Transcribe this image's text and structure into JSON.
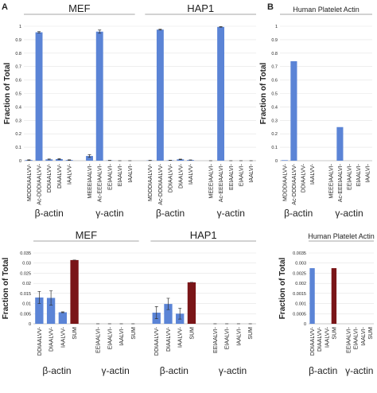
{
  "chart_data": [
    {
      "type": "bar",
      "panel": "A",
      "ylabel": "Fraction of Total",
      "ylim": [
        0,
        1
      ],
      "yticks": [
        0,
        0.1,
        0.2,
        0.3,
        0.4,
        0.5,
        0.6,
        0.7,
        0.8,
        0.9,
        1
      ],
      "groups": [
        {
          "title": "MEF",
          "subgroups": [
            {
              "label": "β-actin",
              "categories": [
                "MDDDIAALVV-",
                "Ac-DDDIAALVV-",
                "DDIAALVV-",
                "DIAALVV-",
                "IAALVV-"
              ],
              "values": [
                0.005,
                0.955,
                0.01,
                0.012,
                0.005
              ],
              "errors": [
                0.002,
                0.005,
                0.003,
                0.003,
                0.002
              ],
              "colors": [
                "#5b84d6",
                "#5b84d6",
                "#5b84d6",
                "#5b84d6",
                "#5b84d6"
              ]
            },
            {
              "label": "γ-actin",
              "categories": [
                "MEEEIAALVI-",
                "Ac-EEEIAALVI-",
                "EEIAALVI-",
                "EIAALVI-",
                "IAALVI-"
              ],
              "values": [
                0.035,
                0.96,
                0.002,
                0,
                0
              ],
              "errors": [
                0.01,
                0.012,
                0.001,
                0,
                0
              ],
              "colors": [
                "#5b84d6",
                "#5b84d6",
                "#5b84d6",
                "#5b84d6",
                "#5b84d6"
              ]
            }
          ]
        },
        {
          "title": "HAP1",
          "subgroups": [
            {
              "label": "β-actin",
              "categories": [
                "MDDDIAALVV-",
                "Ac-DDDIAALVV-",
                "DDIAALVV-",
                "DIAALVV-",
                "IAALVV-"
              ],
              "values": [
                0.002,
                0.975,
                0.003,
                0.01,
                0.005
              ],
              "errors": [
                0.001,
                0.003,
                0.001,
                0.002,
                0.001
              ],
              "colors": [
                "#5b84d6",
                "#5b84d6",
                "#5b84d6",
                "#5b84d6",
                "#5b84d6"
              ]
            },
            {
              "label": "γ-actin",
              "categories": [
                "MEEEIAALVI-",
                "Ac-EEEIAALVI-",
                "EEIAALVI-",
                "EIAALVI-",
                "IAALVI-"
              ],
              "values": [
                0,
                0.995,
                0,
                0,
                0
              ],
              "errors": [
                0,
                0.002,
                0,
                0,
                0
              ],
              "colors": [
                "#5b84d6",
                "#5b84d6",
                "#5b84d6",
                "#5b84d6",
                "#5b84d6"
              ]
            }
          ]
        }
      ]
    },
    {
      "type": "bar",
      "panel": "B",
      "ylabel": "Fraction of Total",
      "ylim": [
        0,
        1
      ],
      "yticks": [
        0,
        0.1,
        0.2,
        0.3,
        0.4,
        0.5,
        0.6,
        0.7,
        0.8,
        0.9,
        1
      ],
      "groups": [
        {
          "title": "Human Platelet Actin",
          "subgroups": [
            {
              "label": "β-actin",
              "categories": [
                "MDDDIAALVV-",
                "Ac-DDDIAALVV-",
                "DDIAALVV-",
                "IAALVV-"
              ],
              "values": [
                0.004,
                0.74,
                0,
                0
              ],
              "colors": [
                "#5b84d6",
                "#5b84d6",
                "#5b84d6",
                "#5b84d6"
              ]
            },
            {
              "label": "γ-actin",
              "categories": [
                "MEEEIAALVI-",
                "Ac-EEEIAALVI-",
                "EEIAALVI-",
                "EIAALVI-",
                "IAALVI-"
              ],
              "values": [
                0,
                0.25,
                0,
                0,
                0
              ],
              "colors": [
                "#5b84d6",
                "#5b84d6",
                "#5b84d6",
                "#5b84d6",
                "#5b84d6"
              ]
            }
          ]
        }
      ]
    },
    {
      "type": "bar",
      "ylabel": "Fraction of Total",
      "ylim": [
        0,
        0.035
      ],
      "yticks": [
        0,
        0.005,
        0.01,
        0.015,
        0.02,
        0.025,
        0.03,
        0.035
      ],
      "groups": [
        {
          "title": "MEF",
          "subgroups": [
            {
              "label": "β-actin",
              "categories": [
                "DDIAALVV-",
                "DIAALVV-",
                "IAALVV-",
                "SUM"
              ],
              "values": [
                0.013,
                0.0128,
                0.0057,
                0.0315
              ],
              "errors": [
                0.003,
                0.0035,
                0.0002,
                0
              ],
              "colors": [
                "#5b84d6",
                "#5b84d6",
                "#5b84d6",
                "#7a1518"
              ]
            },
            {
              "label": "γ-actin",
              "categories": [
                "EEIAALVI-",
                "EIAALVI-",
                "IAALVI-",
                "SUM"
              ],
              "values": [
                0,
                0,
                0,
                0
              ],
              "errors": [
                0,
                0,
                0,
                0
              ],
              "colors": [
                "#5b84d6",
                "#5b84d6",
                "#5b84d6",
                "#7a1518"
              ]
            }
          ]
        },
        {
          "title": "HAP1",
          "subgroups": [
            {
              "label": "β-actin",
              "categories": [
                "DDIAALVV-",
                "DIAALVV-",
                "IAALVV-",
                "SUM"
              ],
              "values": [
                0.0055,
                0.0098,
                0.005,
                0.0205
              ],
              "errors": [
                0.003,
                0.0028,
                0.0027,
                0
              ],
              "colors": [
                "#5b84d6",
                "#5b84d6",
                "#5b84d6",
                "#7a1518"
              ]
            },
            {
              "label": "γ-actin",
              "categories": [
                "EEIAALVI-",
                "EIAALVI-",
                "IAALVI-",
                "SUM"
              ],
              "values": [
                0,
                0,
                0,
                0
              ],
              "errors": [
                0,
                0,
                0,
                0
              ],
              "colors": [
                "#5b84d6",
                "#5b84d6",
                "#5b84d6",
                "#7a1518"
              ]
            }
          ]
        }
      ]
    },
    {
      "type": "bar",
      "ylabel": "Fraction of Total",
      "ylim": [
        0,
        0.0035
      ],
      "yticks": [
        0,
        0.0005,
        0.001,
        0.0015,
        0.002,
        0.0025,
        0.003,
        0.0035
      ],
      "groups": [
        {
          "title": "Human Platelet Actin",
          "subgroups": [
            {
              "label": "β-actin",
              "categories": [
                "DDIAALVV-",
                "DIAALVV-",
                "IAALVV-",
                "SUM"
              ],
              "values": [
                0.00275,
                0,
                0,
                0.00275
              ],
              "colors": [
                "#5b84d6",
                "#5b84d6",
                "#5b84d6",
                "#7a1518"
              ]
            },
            {
              "label": "γ-actin",
              "categories": [
                "EEIAALVI-",
                "EIAALVI-",
                "IAALVI-",
                "SUM"
              ],
              "values": [
                0,
                0,
                0,
                0
              ],
              "colors": [
                "#5b84d6",
                "#5b84d6",
                "#5b84d6",
                "#7a1518"
              ]
            }
          ]
        }
      ]
    }
  ]
}
